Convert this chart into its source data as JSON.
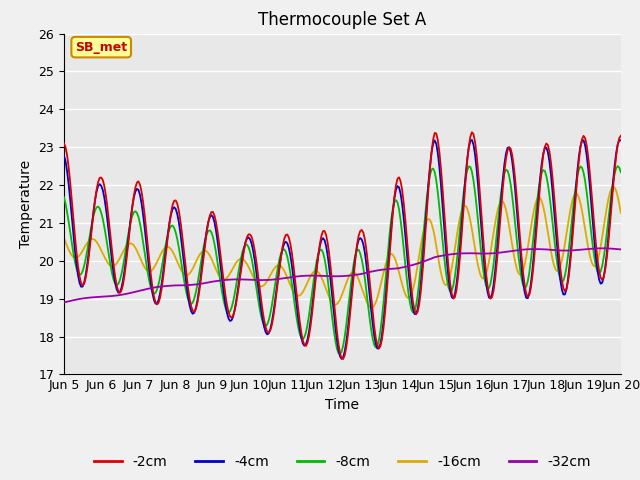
{
  "title": "Thermocouple Set A",
  "xlabel": "Time",
  "ylabel": "Temperature",
  "ylim": [
    17.0,
    26.0
  ],
  "yticks": [
    17.0,
    18.0,
    19.0,
    20.0,
    21.0,
    22.0,
    23.0,
    24.0,
    25.0,
    26.0
  ],
  "xtick_labels": [
    "Jun 5",
    "Jun 6",
    "Jun 7",
    "Jun 8",
    "Jun 9",
    "Jun 10",
    "Jun 11",
    "Jun 12",
    "Jun 13",
    "Jun 14",
    "Jun 15",
    "Jun 16",
    "Jun 17",
    "Jun 18",
    "Jun 19",
    "Jun 20"
  ],
  "colors": {
    "-2cm": "#dd0000",
    "-4cm": "#0000cc",
    "-8cm": "#00bb00",
    "-16cm": "#ddaa00",
    "-32cm": "#9900aa"
  },
  "annotation_text": "SB_met",
  "annotation_color": "#cc0000",
  "annotation_bg": "#ffff99",
  "annotation_border": "#cc8800",
  "plot_bg": "#e8e8e8",
  "fig_bg": "#f0f0f0",
  "grid_color": "#ffffff",
  "title_fontsize": 12,
  "axis_fontsize": 10,
  "tick_fontsize": 9,
  "legend_fontsize": 10
}
